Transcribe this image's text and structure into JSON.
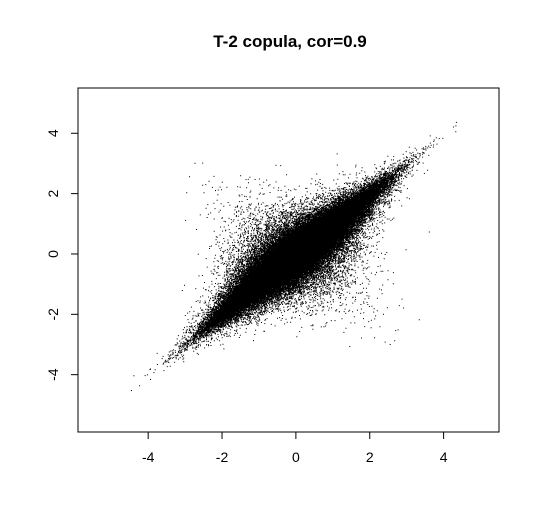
{
  "chart_data": {
    "type": "scatter",
    "title": "T-2 copula, cor=0.9",
    "xlabel": "",
    "ylabel": "",
    "xlim": [
      -5.9,
      5.5
    ],
    "ylim": [
      -5.9,
      5.5
    ],
    "xticks": [
      -4,
      -2,
      0,
      2,
      4
    ],
    "yticks": [
      -4,
      -2,
      0,
      2,
      4
    ],
    "xtick_labels": [
      "-4",
      "-2",
      "0",
      "2",
      "4"
    ],
    "ytick_labels": [
      "-4",
      "-2",
      "0",
      "2",
      "4"
    ],
    "grid": false,
    "legend": "none",
    "point_color": "#000000",
    "series": [
      {
        "distribution": "bivariate t-2 copula with standard normal margins",
        "correlation": 0.9,
        "n_points": 100000
      }
    ]
  }
}
